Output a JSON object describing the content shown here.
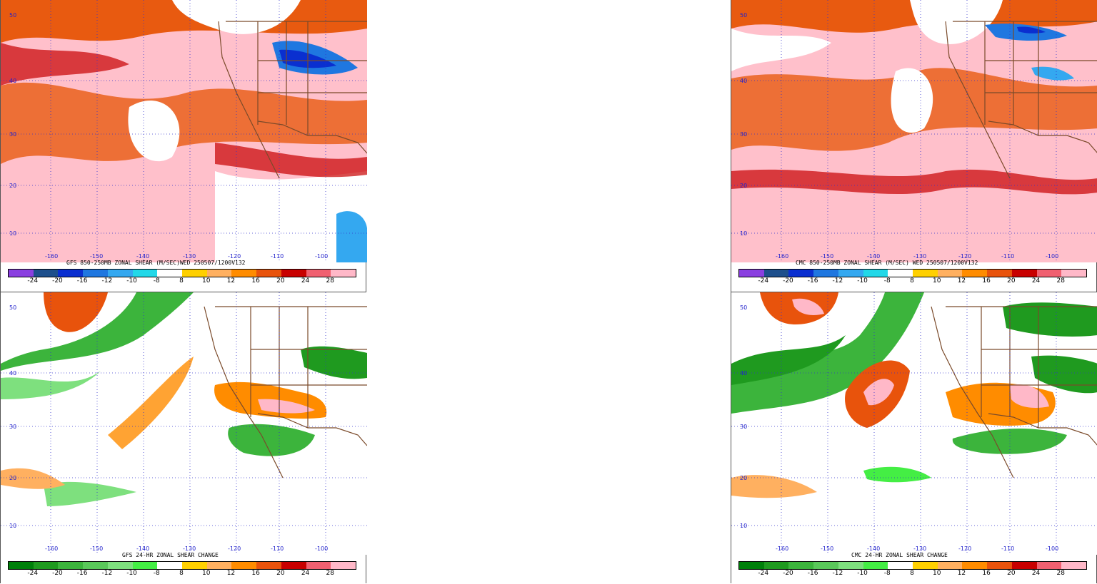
{
  "panels": [
    {
      "id": "gfs-shear",
      "title": "GFS 850-250MB ZONAL SHEAR (M/SEC)WED 250507/1200V132",
      "scale": "shear"
    },
    {
      "id": "cmc-shear",
      "title": "CMC 850-250MB ZONAL SHEAR (M/SEC) WED 250507/1200V132",
      "scale": "shear"
    },
    {
      "id": "gfs-change",
      "title": "GFS 24-HR ZONAL SHEAR CHANGE",
      "scale": "change"
    },
    {
      "id": "cmc-change",
      "title": "CMC 24-HR ZONAL SHEAR CHANGE",
      "scale": "change"
    }
  ],
  "lat_labels": [
    "50",
    "40",
    "30",
    "20",
    "10"
  ],
  "lon_labels": [
    "-160",
    "-150",
    "-140",
    "-130",
    "-120",
    "-110",
    "-100"
  ],
  "colorbar_ticks": [
    "-24",
    "-20",
    "-16",
    "-12",
    "-10",
    "-8",
    "8",
    "10",
    "12",
    "16",
    "20",
    "24",
    "28"
  ],
  "shear_colors": [
    "#8a3fe0",
    "#1d4f8c",
    "#0a2fd0",
    "#1f77e0",
    "#34a8f0",
    "#22d8e8",
    "#ffffff",
    "#ffd000",
    "#ffb060",
    "#ff8c00",
    "#e8530c",
    "#c80000",
    "#f06070",
    "#ffb8c8"
  ],
  "change_colors": [
    "#00800a",
    "#1f9a1f",
    "#3cb43c",
    "#5ac85a",
    "#7ee07e",
    "#44ee44",
    "#ffffff",
    "#ffd000",
    "#ffb060",
    "#ff8c00",
    "#e8530c",
    "#c80000",
    "#f06070",
    "#ffb8c8"
  ]
}
